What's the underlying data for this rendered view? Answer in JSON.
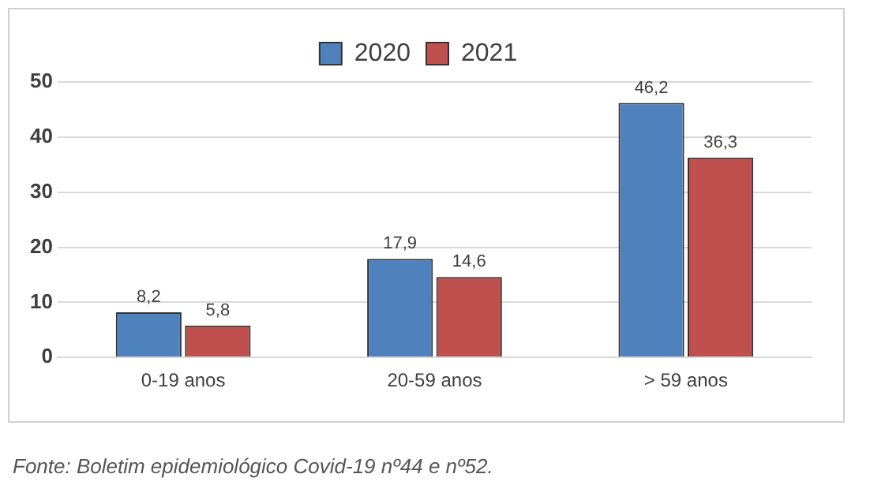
{
  "chart_data": {
    "type": "bar",
    "categories": [
      "0-19 anos",
      "20-59 anos",
      "> 59 anos"
    ],
    "series": [
      {
        "name": "2020",
        "color": "#4f81bd",
        "values": [
          8.2,
          17.9,
          46.2
        ]
      },
      {
        "name": "2021",
        "color": "#c0504d",
        "values": [
          5.8,
          14.6,
          36.3
        ]
      }
    ],
    "value_labels": [
      [
        "8,2",
        "17,9",
        "46,2"
      ],
      [
        "5,8",
        "14,6",
        "36,3"
      ]
    ],
    "ylim": [
      0,
      50
    ],
    "yticks": [
      0,
      10,
      20,
      30,
      40,
      50
    ],
    "grid": "y",
    "legend": "top",
    "annotations": [
      "Fonte: Boletim epidemiológico Covid-19 nº44 e nº52."
    ]
  }
}
